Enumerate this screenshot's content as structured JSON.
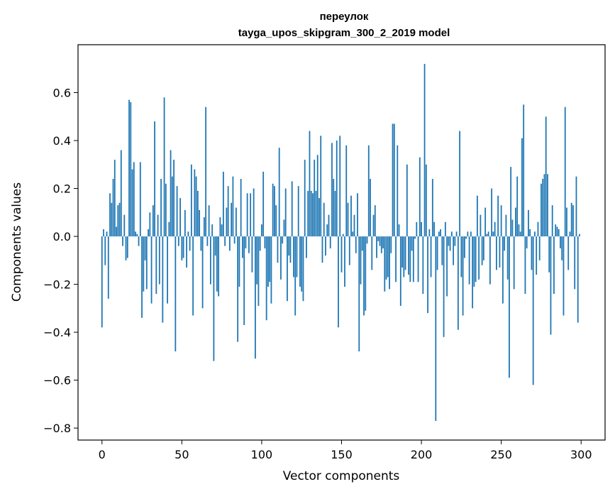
{
  "chart_data": {
    "type": "bar",
    "title_line1": "переулок",
    "title_line2": "tayga_upos_skipgram_300_2_2019 model",
    "xlabel": "Vector components",
    "ylabel": "Components values",
    "xlim": [
      -15,
      315
    ],
    "ylim": [
      -0.85,
      0.8
    ],
    "xticks": [
      0,
      50,
      100,
      150,
      200,
      250,
      300
    ],
    "xtick_labels": [
      "0",
      "50",
      "100",
      "150",
      "200",
      "250",
      "300"
    ],
    "yticks": [
      -0.8,
      -0.6,
      -0.4,
      -0.2,
      0.0,
      0.2,
      0.4,
      0.6
    ],
    "ytick_labels": [
      "−0.8",
      "−0.6",
      "−0.4",
      "−0.2",
      "0.0",
      "0.2",
      "0.4",
      "0.6"
    ],
    "bar_color": "#1f77b4",
    "grid": false,
    "values": [
      -0.38,
      0.03,
      -0.12,
      0.02,
      -0.26,
      0.18,
      0.14,
      0.24,
      0.32,
      0.04,
      0.13,
      0.14,
      0.36,
      -0.04,
      0.09,
      -0.1,
      -0.09,
      0.57,
      0.56,
      0.28,
      0.31,
      0.02,
      0.01,
      -0.04,
      0.31,
      -0.34,
      -0.23,
      -0.1,
      -0.22,
      0.03,
      0.1,
      -0.28,
      0.13,
      0.48,
      -0.24,
      0.09,
      -0.2,
      0.24,
      -0.36,
      0.58,
      0.22,
      -0.28,
      0.06,
      0.36,
      0.25,
      0.32,
      -0.48,
      0.21,
      -0.04,
      0.16,
      -0.1,
      -0.09,
      0.11,
      -0.13,
      0.02,
      -0.06,
      0.3,
      -0.33,
      0.28,
      0.25,
      0.19,
      0.11,
      -0.06,
      -0.3,
      0.08,
      0.54,
      -0.04,
      0.13,
      -0.2,
      0.05,
      -0.52,
      -0.08,
      -0.23,
      -0.25,
      0.08,
      0.05,
      0.27,
      -0.04,
      0.12,
      0.21,
      -0.06,
      0.14,
      0.25,
      -0.03,
      0.12,
      -0.44,
      -0.21,
      0.24,
      -0.09,
      -0.37,
      -0.05,
      0.18,
      -0.07,
      0.18,
      -0.15,
      0.2,
      -0.51,
      -0.2,
      -0.29,
      -0.06,
      0.05,
      0.27,
      -0.05,
      -0.35,
      -0.21,
      -0.19,
      -0.28,
      0.22,
      0.21,
      0.13,
      -0.11,
      0.37,
      -0.18,
      -0.03,
      0.07,
      0.2,
      -0.27,
      -0.08,
      -0.11,
      0.23,
      -0.17,
      -0.33,
      -0.17,
      0.21,
      -0.21,
      -0.23,
      -0.27,
      0.32,
      -0.09,
      0.19,
      0.44,
      0.19,
      0.18,
      0.32,
      0.19,
      0.34,
      0.16,
      0.42,
      -0.11,
      0.14,
      -0.08,
      0.05,
      0.09,
      -0.05,
      0.39,
      0.24,
      0.19,
      0.4,
      -0.38,
      0.42,
      -0.15,
      0.01,
      -0.21,
      0.38,
      0.14,
      -0.12,
      0.17,
      0.02,
      0.09,
      -0.07,
      0.18,
      -0.48,
      -0.2,
      -0.06,
      -0.33,
      -0.31,
      -0.03,
      0.38,
      0.24,
      -0.14,
      0.09,
      0.13,
      -0.09,
      -0.02,
      -0.04,
      -0.07,
      -0.05,
      -0.23,
      -0.18,
      -0.17,
      -0.22,
      -0.07,
      0.47,
      0.47,
      -0.19,
      0.38,
      0.05,
      -0.29,
      -0.13,
      -0.17,
      -0.14,
      0.3,
      -0.16,
      -0.19,
      -0.06,
      -0.19,
      -0.01,
      0.06,
      -0.19,
      0.33,
      0.06,
      -0.24,
      0.72,
      0.3,
      -0.32,
      0.03,
      -0.17,
      0.24,
      0.06,
      -0.77,
      -0.14,
      0.02,
      0.03,
      -0.12,
      -0.42,
      0.06,
      -0.25,
      -0.04,
      -0.06,
      0.02,
      -0.12,
      -0.04,
      0.02,
      -0.39,
      0.44,
      -0.17,
      -0.33,
      -0.09,
      -0.01,
      0.02,
      -0.2,
      0.02,
      -0.3,
      -0.21,
      -0.19,
      0.17,
      -0.18,
      0.09,
      -0.12,
      -0.1,
      0.12,
      0.01,
      0.02,
      -0.2,
      0.2,
      0.02,
      0.06,
      -0.14,
      0.17,
      -0.13,
      0.13,
      -0.28,
      -0.06,
      0.09,
      -0.18,
      -0.59,
      0.29,
      0.07,
      -0.22,
      0.12,
      0.25,
      0.05,
      0.02,
      0.41,
      0.55,
      -0.24,
      -0.05,
      0.11,
      0.03,
      -0.14,
      -0.62,
      0.02,
      -0.16,
      0.06,
      -0.1,
      0.22,
      0.24,
      0.26,
      0.5,
      0.26,
      -0.15,
      -0.41,
      0.13,
      -0.24,
      0.05,
      0.04,
      0.03,
      -0.05,
      -0.1,
      -0.33,
      0.54,
      0.12,
      -0.14,
      0.02,
      0.14,
      0.13,
      -0.22,
      0.25,
      -0.36,
      0.01
    ]
  }
}
